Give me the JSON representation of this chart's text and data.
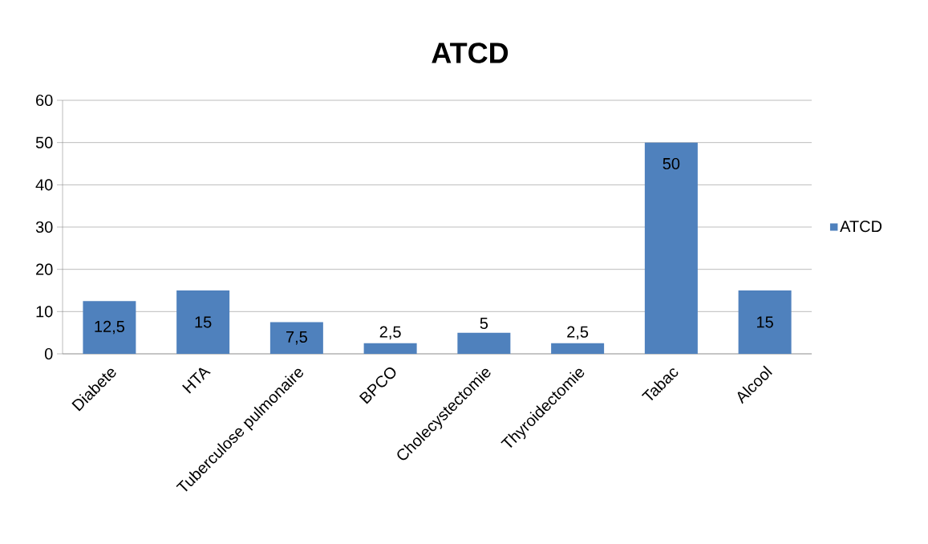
{
  "chart_data": {
    "type": "bar",
    "title": "ATCD",
    "categories": [
      "Diabete",
      "HTA",
      "Tuberculose pulmonaire",
      "BPCO",
      "Cholecystectomie",
      "Thyroidectomie",
      "Tabac",
      "Alcool"
    ],
    "series": [
      {
        "name": "ATCD",
        "color": "#4f81bd",
        "values": [
          12.5,
          15,
          7.5,
          2.5,
          5,
          2.5,
          50,
          15
        ],
        "value_labels": [
          "12,5",
          "15",
          "7,5",
          "2,5",
          "5",
          "2,5",
          "50",
          "15"
        ]
      }
    ],
    "ylim": [
      0,
      60
    ],
    "yticks": [
      0,
      10,
      20,
      30,
      40,
      50,
      60
    ],
    "grid": "y",
    "legend": "right"
  }
}
